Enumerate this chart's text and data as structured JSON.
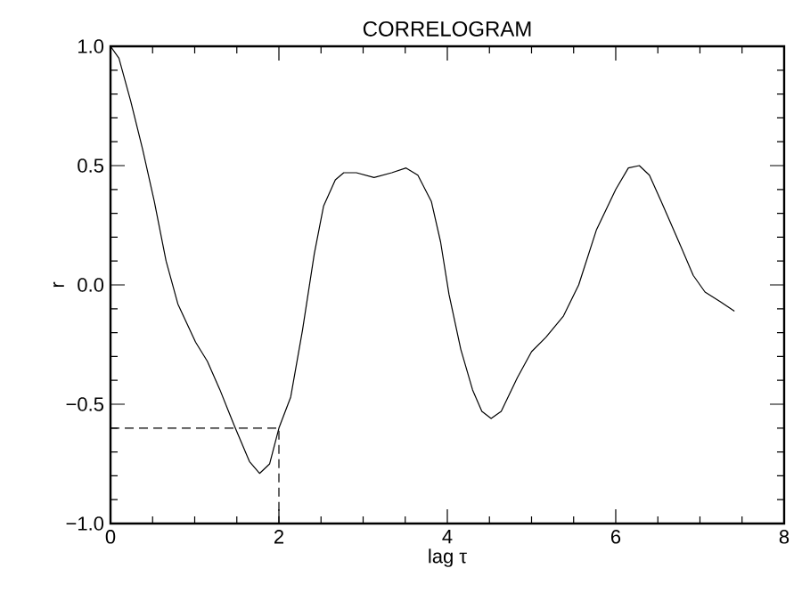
{
  "chart_data": {
    "type": "line",
    "title": "CORRELOGRAM",
    "xlabel": "lag τ",
    "ylabel": "r",
    "xlim": [
      0,
      8
    ],
    "xticks": [
      0,
      2,
      4,
      6,
      8
    ],
    "ylim": [
      -1.0,
      1.0
    ],
    "yticks": [
      {
        "value": -1.0,
        "label": "−1.0"
      },
      {
        "value": -0.5,
        "label": "−0.5"
      },
      {
        "value": 0,
        "label": "0.0"
      },
      {
        "value": 0.5,
        "label": "0.5"
      },
      {
        "value": 1.0,
        "label": "1.0"
      }
    ],
    "series": [
      {
        "color": "#000000",
        "line_style": "solid",
        "x": [
          0,
          0.1,
          0.24,
          0.38,
          0.52,
          0.66,
          0.8,
          1.01,
          1.15,
          1.3,
          1.47,
          1.65,
          1.77,
          1.89,
          2.0,
          2.14,
          2.28,
          2.42,
          2.53,
          2.67,
          2.77,
          2.92,
          3.13,
          3.34,
          3.51,
          3.65,
          3.81,
          3.92,
          4.02,
          4.16,
          4.3,
          4.41,
          4.52,
          4.64,
          4.83,
          5.0,
          5.17,
          5.38,
          5.56,
          5.77,
          6.0,
          6.15,
          6.28,
          6.4,
          6.54,
          6.75,
          6.92,
          7.06,
          7.24,
          7.41
        ],
        "values": [
          1.0,
          0.95,
          0.77,
          0.57,
          0.35,
          0.1,
          -0.08,
          -0.24,
          -0.32,
          -0.44,
          -0.59,
          -0.74,
          -0.79,
          -0.75,
          -0.6,
          -0.47,
          -0.19,
          0.13,
          0.33,
          0.44,
          0.47,
          0.47,
          0.45,
          0.47,
          0.49,
          0.46,
          0.35,
          0.18,
          -0.04,
          -0.27,
          -0.44,
          -0.53,
          -0.56,
          -0.53,
          -0.39,
          -0.28,
          -0.22,
          -0.13,
          0.0,
          0.23,
          0.4,
          0.49,
          0.5,
          0.46,
          0.35,
          0.18,
          0.04,
          -0.03,
          -0.07,
          -0.11
        ]
      },
      {
        "color": "#000000",
        "line_style": "dashed",
        "x": [
          0,
          2,
          2
        ],
        "values": [
          -0.6,
          -0.6,
          -1.0
        ]
      }
    ]
  }
}
